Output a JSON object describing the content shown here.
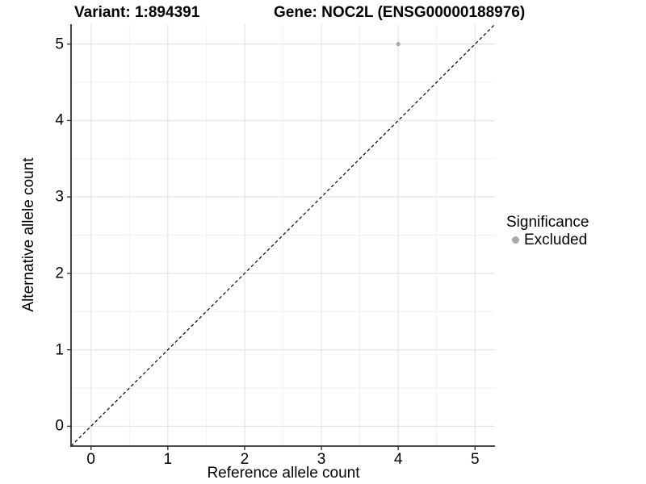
{
  "figure": {
    "title_variant": "Variant: 1:894391",
    "title_gene": "Gene: NOC2L (ENSG00000188976)"
  },
  "legend": {
    "title": "Significance",
    "items": [
      {
        "label": "Excluded",
        "color": "#a9a9a9",
        "marker": "circle"
      }
    ]
  },
  "chart_data": {
    "type": "scatter",
    "title": "Variant: 1:894391 — Gene: NOC2L (ENSG00000188976)",
    "xlabel": "Reference allele count",
    "ylabel": "Alternative allele count",
    "xlim": [
      -0.26,
      5.26
    ],
    "ylim": [
      -0.26,
      5.26
    ],
    "x_ticks": [
      0,
      1,
      2,
      3,
      4,
      5
    ],
    "y_ticks": [
      0,
      1,
      2,
      3,
      4,
      5
    ],
    "grid": {
      "major": true,
      "minor": true
    },
    "legend_position": "right",
    "series": [
      {
        "name": "Excluded",
        "type": "scatter",
        "color": "#aaaaaa",
        "points": [
          [
            4,
            5
          ]
        ]
      }
    ],
    "annotations": [
      {
        "type": "abline",
        "slope": 1,
        "intercept": 0,
        "style": "dashed",
        "color": "#000000"
      }
    ]
  },
  "style": {
    "background": "#ffffff",
    "grid_major_color": "#e4e4e4",
    "grid_minor_color": "#f0f0f0",
    "axis_color": "#333333",
    "tick_color": "#333333",
    "text_color": "#000000",
    "dashed_line_color": "#000000",
    "point_color": "#aaaaaa"
  }
}
